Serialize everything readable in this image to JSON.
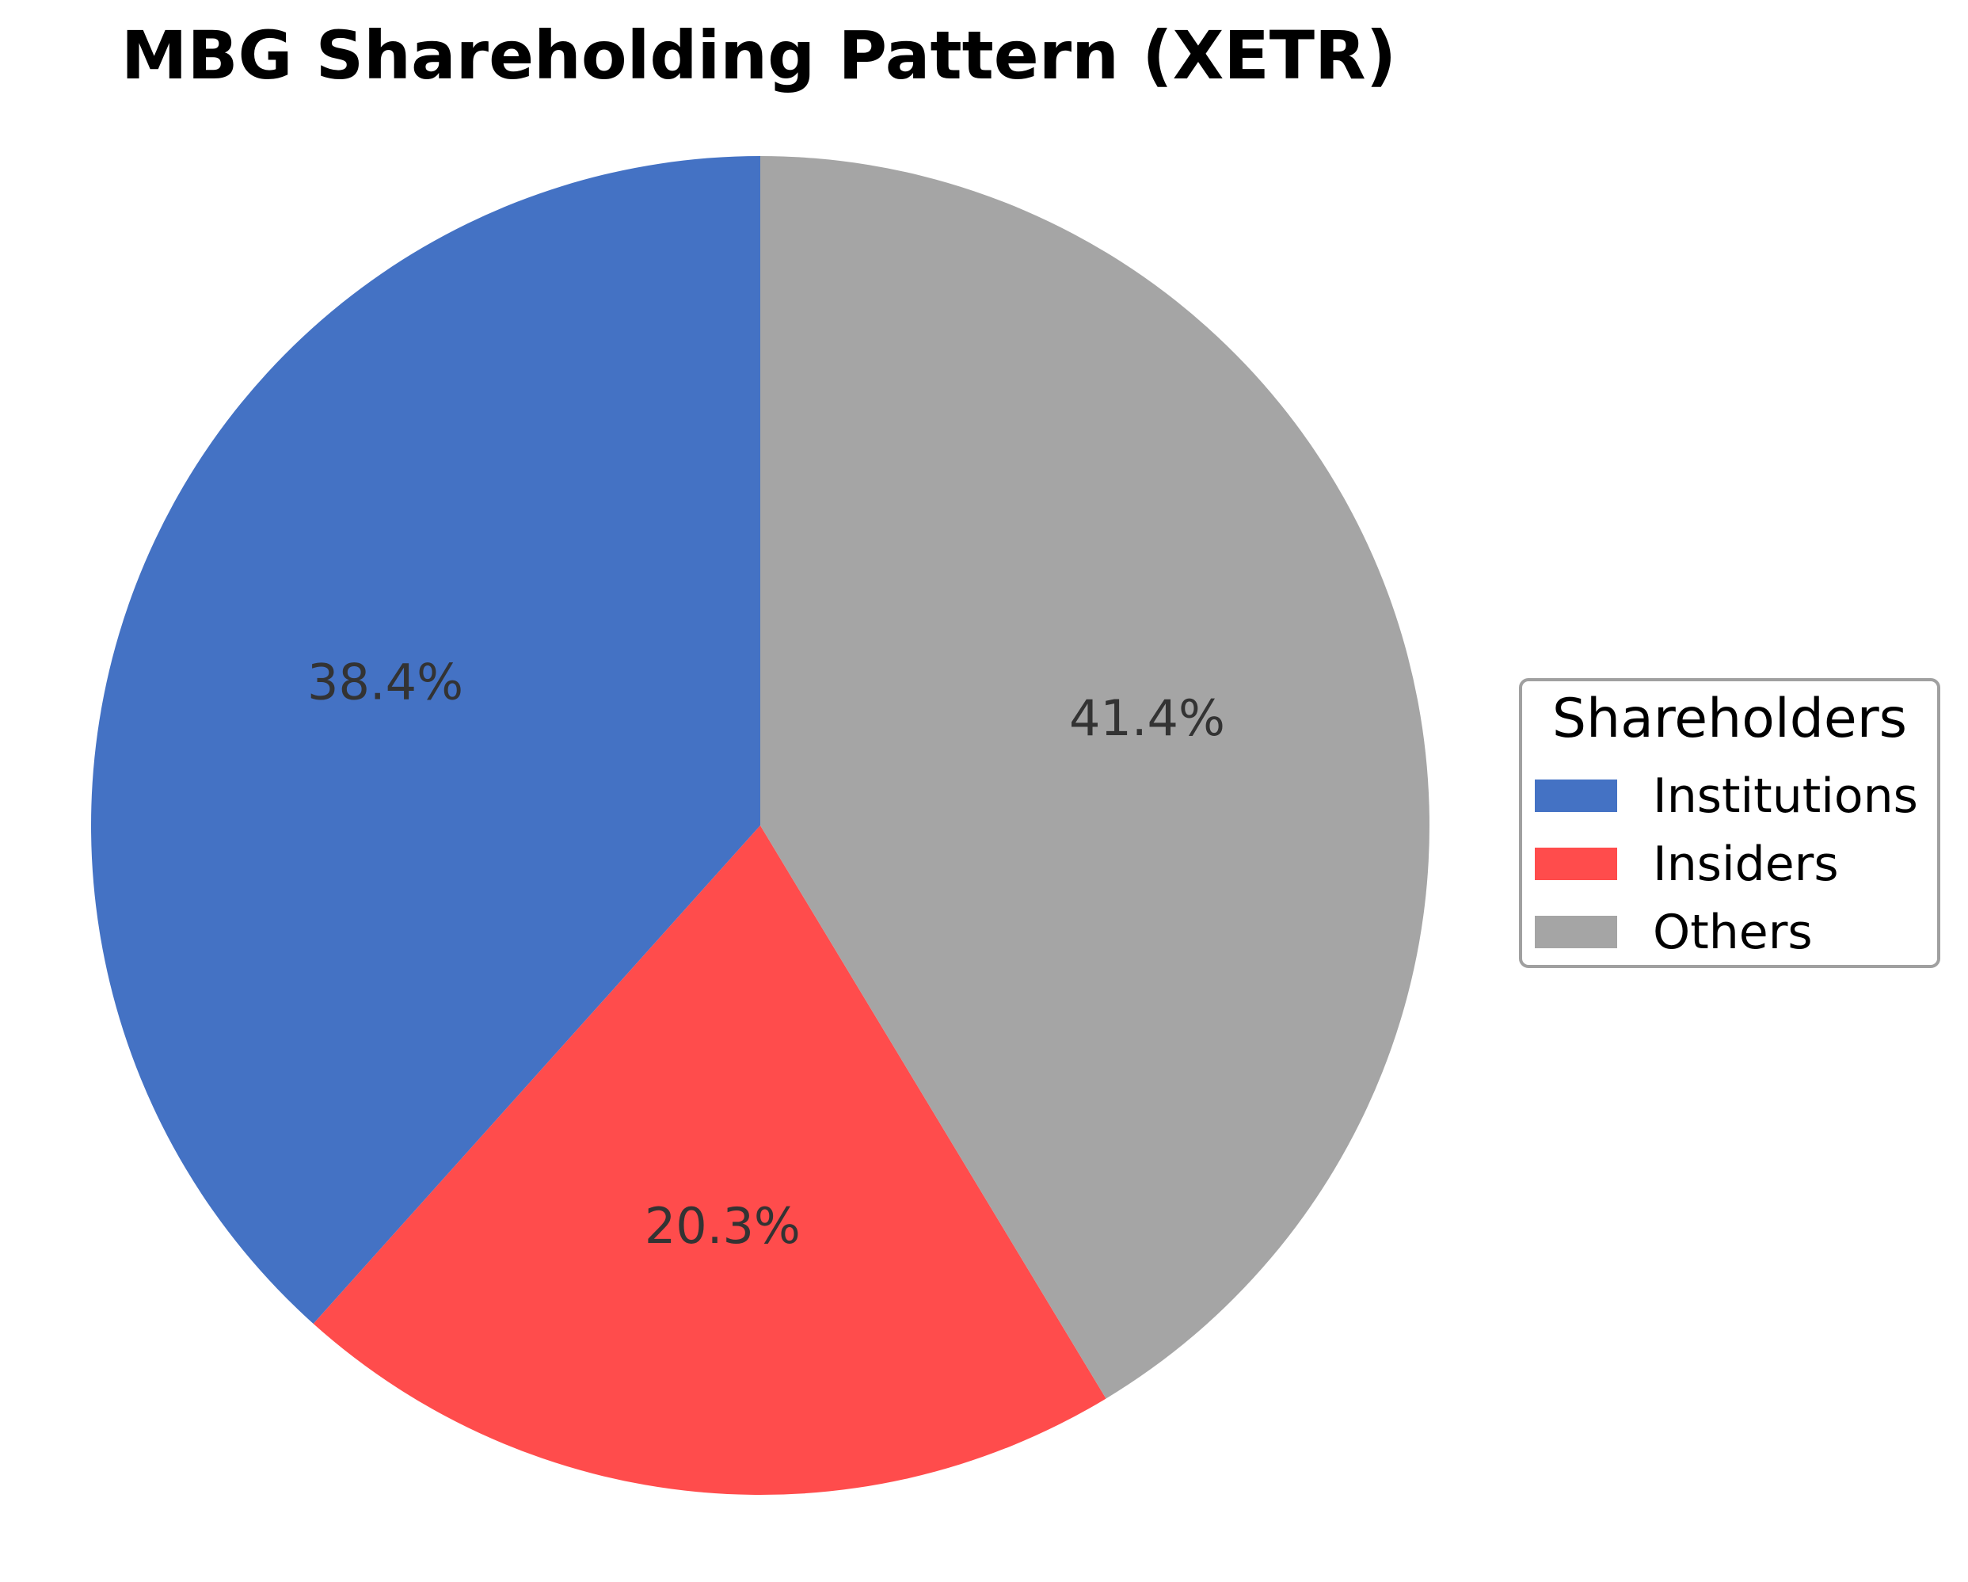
{
  "chart_data": {
    "type": "pie",
    "title": "MBG Shareholding Pattern (XETR)",
    "categories": [
      "Institutions",
      "Insiders",
      "Others"
    ],
    "values": [
      38.4,
      20.3,
      41.4
    ],
    "labels": [
      "38.4%",
      "20.3%",
      "41.4%"
    ],
    "colors": [
      "#4472c4",
      "#ff4c4c",
      "#a5a5a5"
    ],
    "start_angle": 90,
    "direction": "counterclockwise",
    "legend": {
      "title": "Shareholders",
      "position": "right",
      "entries": [
        "Institutions",
        "Insiders",
        "Others"
      ]
    }
  },
  "legend": {
    "title": "Shareholders",
    "items": [
      {
        "label": "Institutions",
        "color": "#4472c4"
      },
      {
        "label": "Insiders",
        "color": "#ff4c4c"
      },
      {
        "label": "Others",
        "color": "#a5a5a5"
      }
    ]
  }
}
